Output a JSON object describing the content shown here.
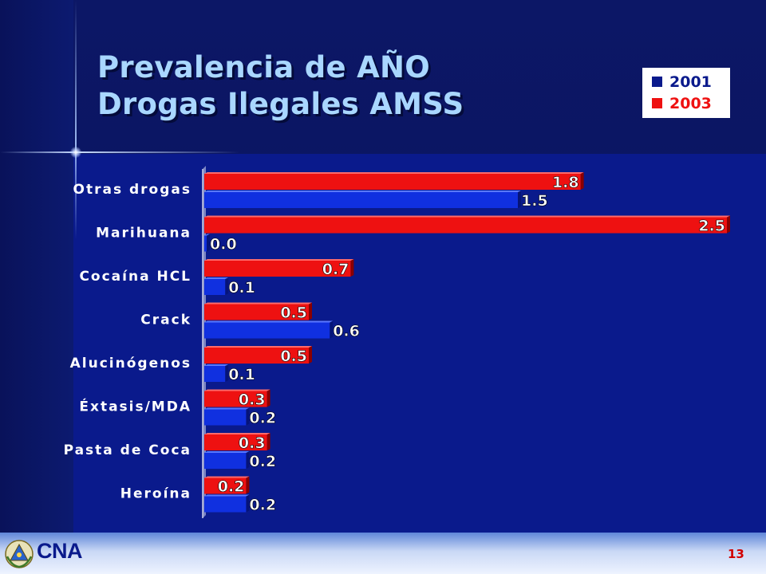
{
  "slide": {
    "title_line1": "Prevalencia de AÑO",
    "title_line2": "Drogas Ilegales AMSS",
    "brand": "CNA",
    "page_number": "13"
  },
  "colors": {
    "series_2001": "#1030e0",
    "series_2003": "#ee1111",
    "background": "#0a1a8c"
  },
  "chart_data": {
    "type": "bar",
    "orientation": "horizontal",
    "title": "Prevalencia de AÑO Drogas Ilegales AMSS",
    "categories": [
      "Otras drogas",
      "Marihuana",
      "Cocaína HCL",
      "Crack",
      "Alucinógenos",
      "Éxtasis/MDA",
      "Pasta de Coca",
      "Heroína"
    ],
    "series": [
      {
        "name": "2001",
        "values": [
          1.5,
          0.0,
          0.1,
          0.6,
          0.1,
          0.2,
          0.2,
          0.2
        ],
        "labels": [
          "1.5",
          "0.0",
          "0.1",
          "0.6",
          "0.1",
          "0.2",
          "0.2",
          "0.2"
        ]
      },
      {
        "name": "2003",
        "values": [
          1.8,
          2.5,
          0.7,
          0.5,
          0.5,
          0.3,
          0.3,
          0.2
        ],
        "labels": [
          "1.8",
          "2.5",
          "0.7",
          "0.5",
          "0.5",
          "0.3",
          "0.3",
          "0.2"
        ]
      }
    ],
    "xlim": [
      0,
      2.5
    ],
    "grid": false,
    "legend_position": "top-right"
  }
}
